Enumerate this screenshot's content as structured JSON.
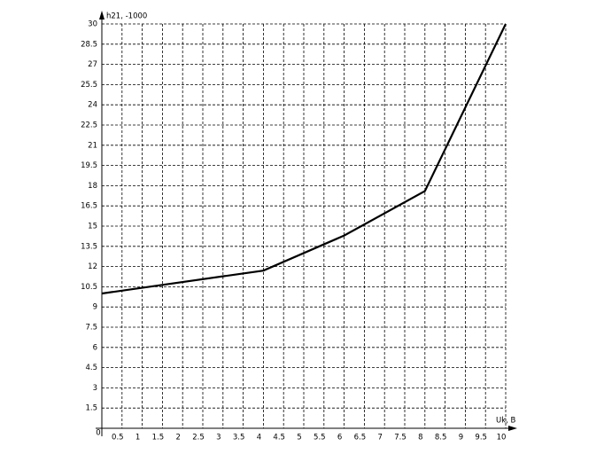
{
  "chart_data": {
    "type": "line",
    "x_label": "Uk, B",
    "y_label": "h21, -1000",
    "x": [
      0,
      4,
      6,
      8,
      10
    ],
    "values": [
      10,
      11.7,
      14.3,
      17.6,
      30
    ],
    "color": "#000000",
    "xlim": [
      0,
      10
    ],
    "ylim": [
      0,
      30
    ],
    "xticks": [
      0,
      0.5,
      1,
      1.5,
      2,
      2.5,
      3,
      3.5,
      4,
      4.5,
      5,
      5.5,
      6,
      6.5,
      7,
      7.5,
      8,
      8.5,
      9,
      9.5,
      10
    ],
    "yticks": [
      1.5,
      3,
      4.5,
      6,
      7.5,
      9,
      10.5,
      12,
      13.5,
      15,
      16.5,
      18,
      19.5,
      21,
      22.5,
      24,
      25.5,
      27,
      28.5,
      30
    ],
    "grid": true
  }
}
